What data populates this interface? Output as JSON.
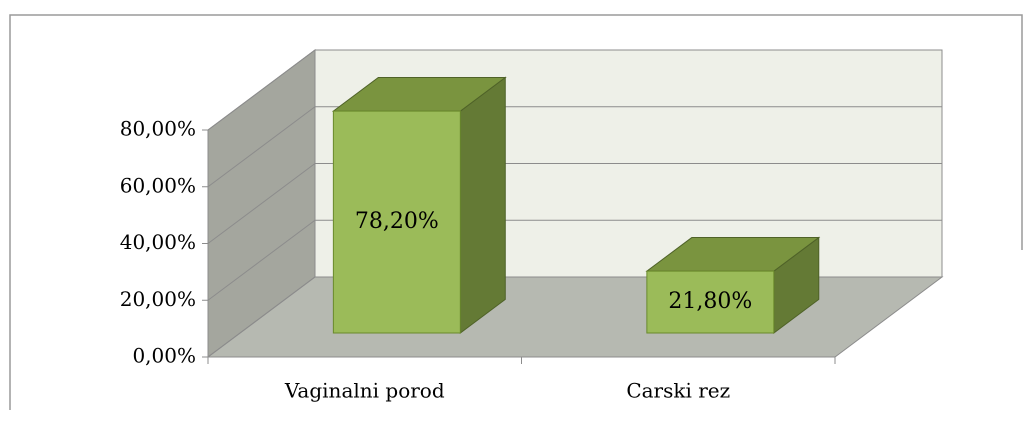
{
  "chart_data": {
    "type": "bar3d",
    "categories": [
      "Vaginalni porod",
      "Carski rez"
    ],
    "values": [
      78.2,
      21.8
    ],
    "value_labels": [
      "78,20%",
      "21,80%"
    ],
    "color": "#9bbb59",
    "ylim": [
      0,
      80
    ],
    "yticks": [
      {
        "value": 0,
        "label": "0,00%"
      },
      {
        "value": 20,
        "label": "20,00%"
      },
      {
        "value": 40,
        "label": "40,00%"
      },
      {
        "value": 60,
        "label": "60,00%"
      },
      {
        "value": 80,
        "label": "80,00%"
      }
    ],
    "grid": true
  }
}
